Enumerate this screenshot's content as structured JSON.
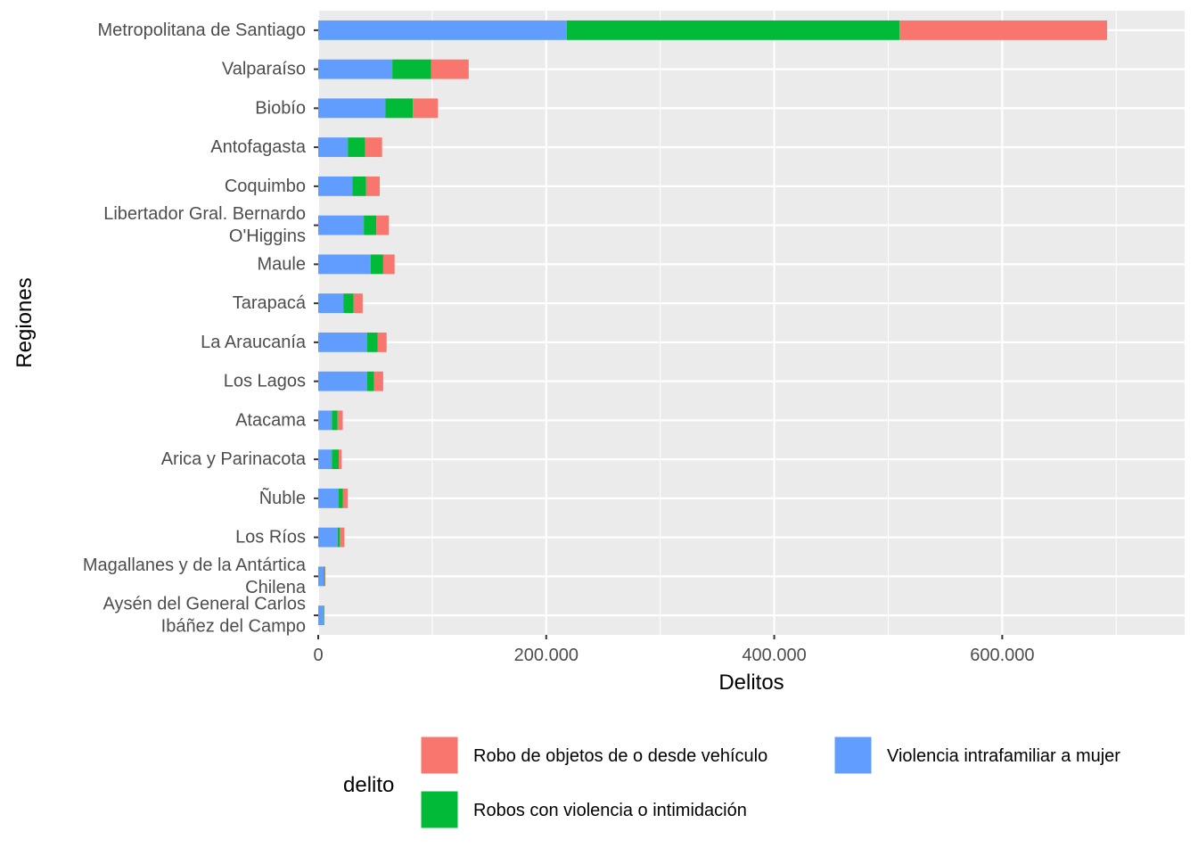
{
  "chart_data": {
    "type": "bar",
    "orientation": "horizontal",
    "stacked": true,
    "xlabel": "Delitos",
    "ylabel": "Regiones",
    "xlim": [
      0,
      760000
    ],
    "x_ticks": [
      0,
      200000,
      400000,
      600000
    ],
    "x_tick_labels": [
      "0",
      "200.000",
      "400.000",
      "600.000"
    ],
    "grid": true,
    "legend_position": "bottom",
    "legend_title": "delito",
    "categories": [
      [
        "Metropolitana de Santiago"
      ],
      [
        "Valparaíso"
      ],
      [
        "Biobío"
      ],
      [
        "Antofagasta"
      ],
      [
        "Coquimbo"
      ],
      [
        "Libertador Gral. Bernardo",
        "O'Higgins"
      ],
      [
        "Maule"
      ],
      [
        "Tarapacá"
      ],
      [
        "La Araucanía"
      ],
      [
        "Los Lagos"
      ],
      [
        "Atacama"
      ],
      [
        "Arica y Parinacota"
      ],
      [
        "Ñuble"
      ],
      [
        "Los Ríos"
      ],
      [
        "Magallanes y de la Antártica",
        "Chilena"
      ],
      [
        "Aysén del General Carlos",
        "Ibáñez del Campo"
      ]
    ],
    "stack_order": [
      "Violencia intrafamiliar a mujer",
      "Robos con violencia o intimidación",
      "Robo de objetos de o desde vehículo"
    ],
    "series": [
      {
        "name": "Robo de objetos de o desde vehículo",
        "color": "#F8766D",
        "values": [
          182000,
          33000,
          22000,
          15000,
          12000,
          11000,
          10000,
          8000,
          8000,
          8000,
          4500,
          2500,
          4500,
          4000,
          500,
          500
        ]
      },
      {
        "name": "Robos con violencia o intimidación",
        "color": "#00BA38",
        "values": [
          292000,
          34000,
          24000,
          15000,
          12000,
          11000,
          11000,
          9000,
          9000,
          6000,
          5000,
          6000,
          3500,
          2000,
          800,
          500
        ]
      },
      {
        "name": "Violencia intrafamiliar a mujer",
        "color": "#619CFF",
        "values": [
          218000,
          65000,
          59000,
          26000,
          30000,
          40000,
          46000,
          22000,
          43000,
          43000,
          12000,
          12000,
          18000,
          17000,
          5000,
          4500
        ]
      }
    ],
    "legend_layout": [
      [
        "Robo de objetos de o desde vehículo",
        "Violencia intrafamiliar a mujer"
      ],
      [
        "Robos con violencia o intimidación"
      ]
    ]
  }
}
